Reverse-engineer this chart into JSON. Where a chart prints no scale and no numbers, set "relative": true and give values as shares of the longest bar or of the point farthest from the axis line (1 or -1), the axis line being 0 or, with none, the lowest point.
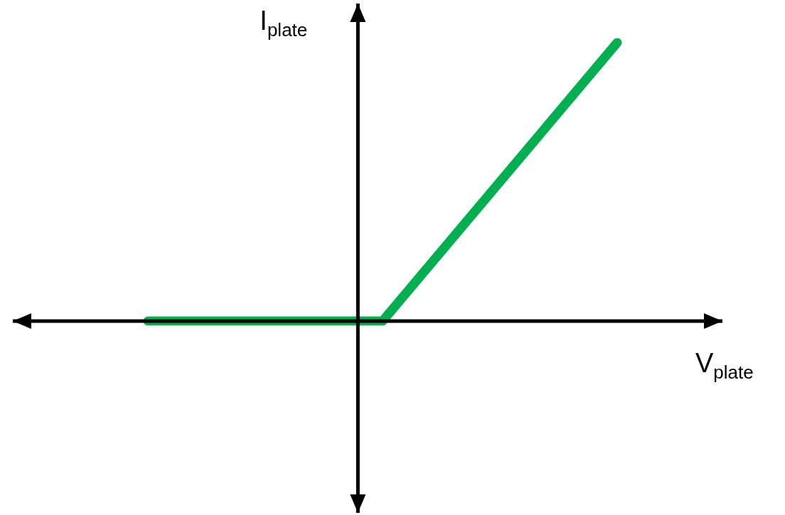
{
  "chart_data": {
    "type": "line",
    "relative": true,
    "xlabel": "V$_{plate}$",
    "ylabel": "I$_{plate}$",
    "categories": [
      null,
      null,
      null
    ],
    "series": [
      {
        "color": "#00b050",
        "values": [
          0,
          0,
          1
        ]
      }
    ]
  }
}
